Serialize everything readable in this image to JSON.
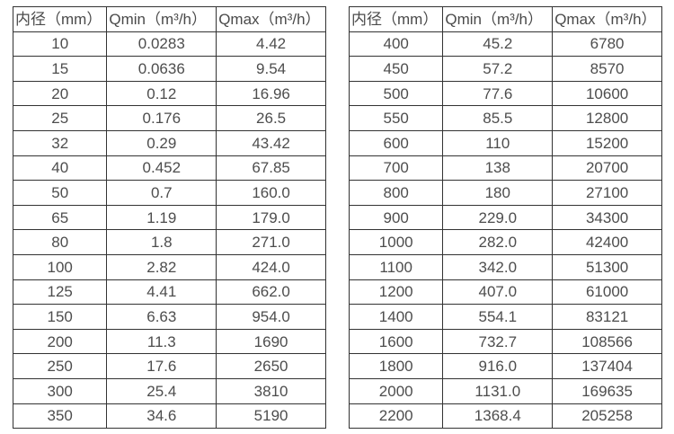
{
  "page": {
    "background": "#ffffff",
    "text_color": "#4a4a4a",
    "border_color": "#333333",
    "description": "Flow meter inner diameter vs. minimum and maximum flow rate specification tables"
  },
  "tables": [
    {
      "name": "small-diameters",
      "headers": [
        "内径（mm）",
        "Qmin（m³/h）",
        "Qmax（m³/h）"
      ],
      "rows": [
        [
          "10",
          "0.0283",
          "4.42"
        ],
        [
          "15",
          "0.0636",
          "9.54"
        ],
        [
          "20",
          "0.12",
          "16.96"
        ],
        [
          "25",
          "0.176",
          "26.5"
        ],
        [
          "32",
          "0.29",
          "43.42"
        ],
        [
          "40",
          "0.452",
          "67.85"
        ],
        [
          "50",
          "0.7",
          "160.0"
        ],
        [
          "65",
          "1.19",
          "179.0"
        ],
        [
          "80",
          "1.8",
          "271.0"
        ],
        [
          "100",
          "2.82",
          "424.0"
        ],
        [
          "125",
          "4.41",
          "662.0"
        ],
        [
          "150",
          "6.63",
          "954.0"
        ],
        [
          "200",
          "11.3",
          "1690"
        ],
        [
          "250",
          "17.6",
          "2650"
        ],
        [
          "300",
          "25.4",
          "3810"
        ],
        [
          "350",
          "34.6",
          "5190"
        ]
      ]
    },
    {
      "name": "large-diameters",
      "headers": [
        "内径（mm）",
        "Qmin（m³/h）",
        "Qmax（m³/h）"
      ],
      "rows": [
        [
          "400",
          "45.2",
          "6780"
        ],
        [
          "450",
          "57.2",
          "8570"
        ],
        [
          "500",
          "77.6",
          "10600"
        ],
        [
          "550",
          "85.5",
          "12800"
        ],
        [
          "600",
          "110",
          "15200"
        ],
        [
          "700",
          "138",
          "20700"
        ],
        [
          "800",
          "180",
          "27100"
        ],
        [
          "900",
          "229.0",
          "34300"
        ],
        [
          "1000",
          "282.0",
          "42400"
        ],
        [
          "1100",
          "342.0",
          "51300"
        ],
        [
          "1200",
          "407.0",
          "61000"
        ],
        [
          "1400",
          "554.1",
          "83121"
        ],
        [
          "1600",
          "732.7",
          "108566"
        ],
        [
          "1800",
          "916.0",
          "137404"
        ],
        [
          "2000",
          "1131.0",
          "169635"
        ],
        [
          "2200",
          "1368.4",
          "205258"
        ]
      ]
    }
  ]
}
